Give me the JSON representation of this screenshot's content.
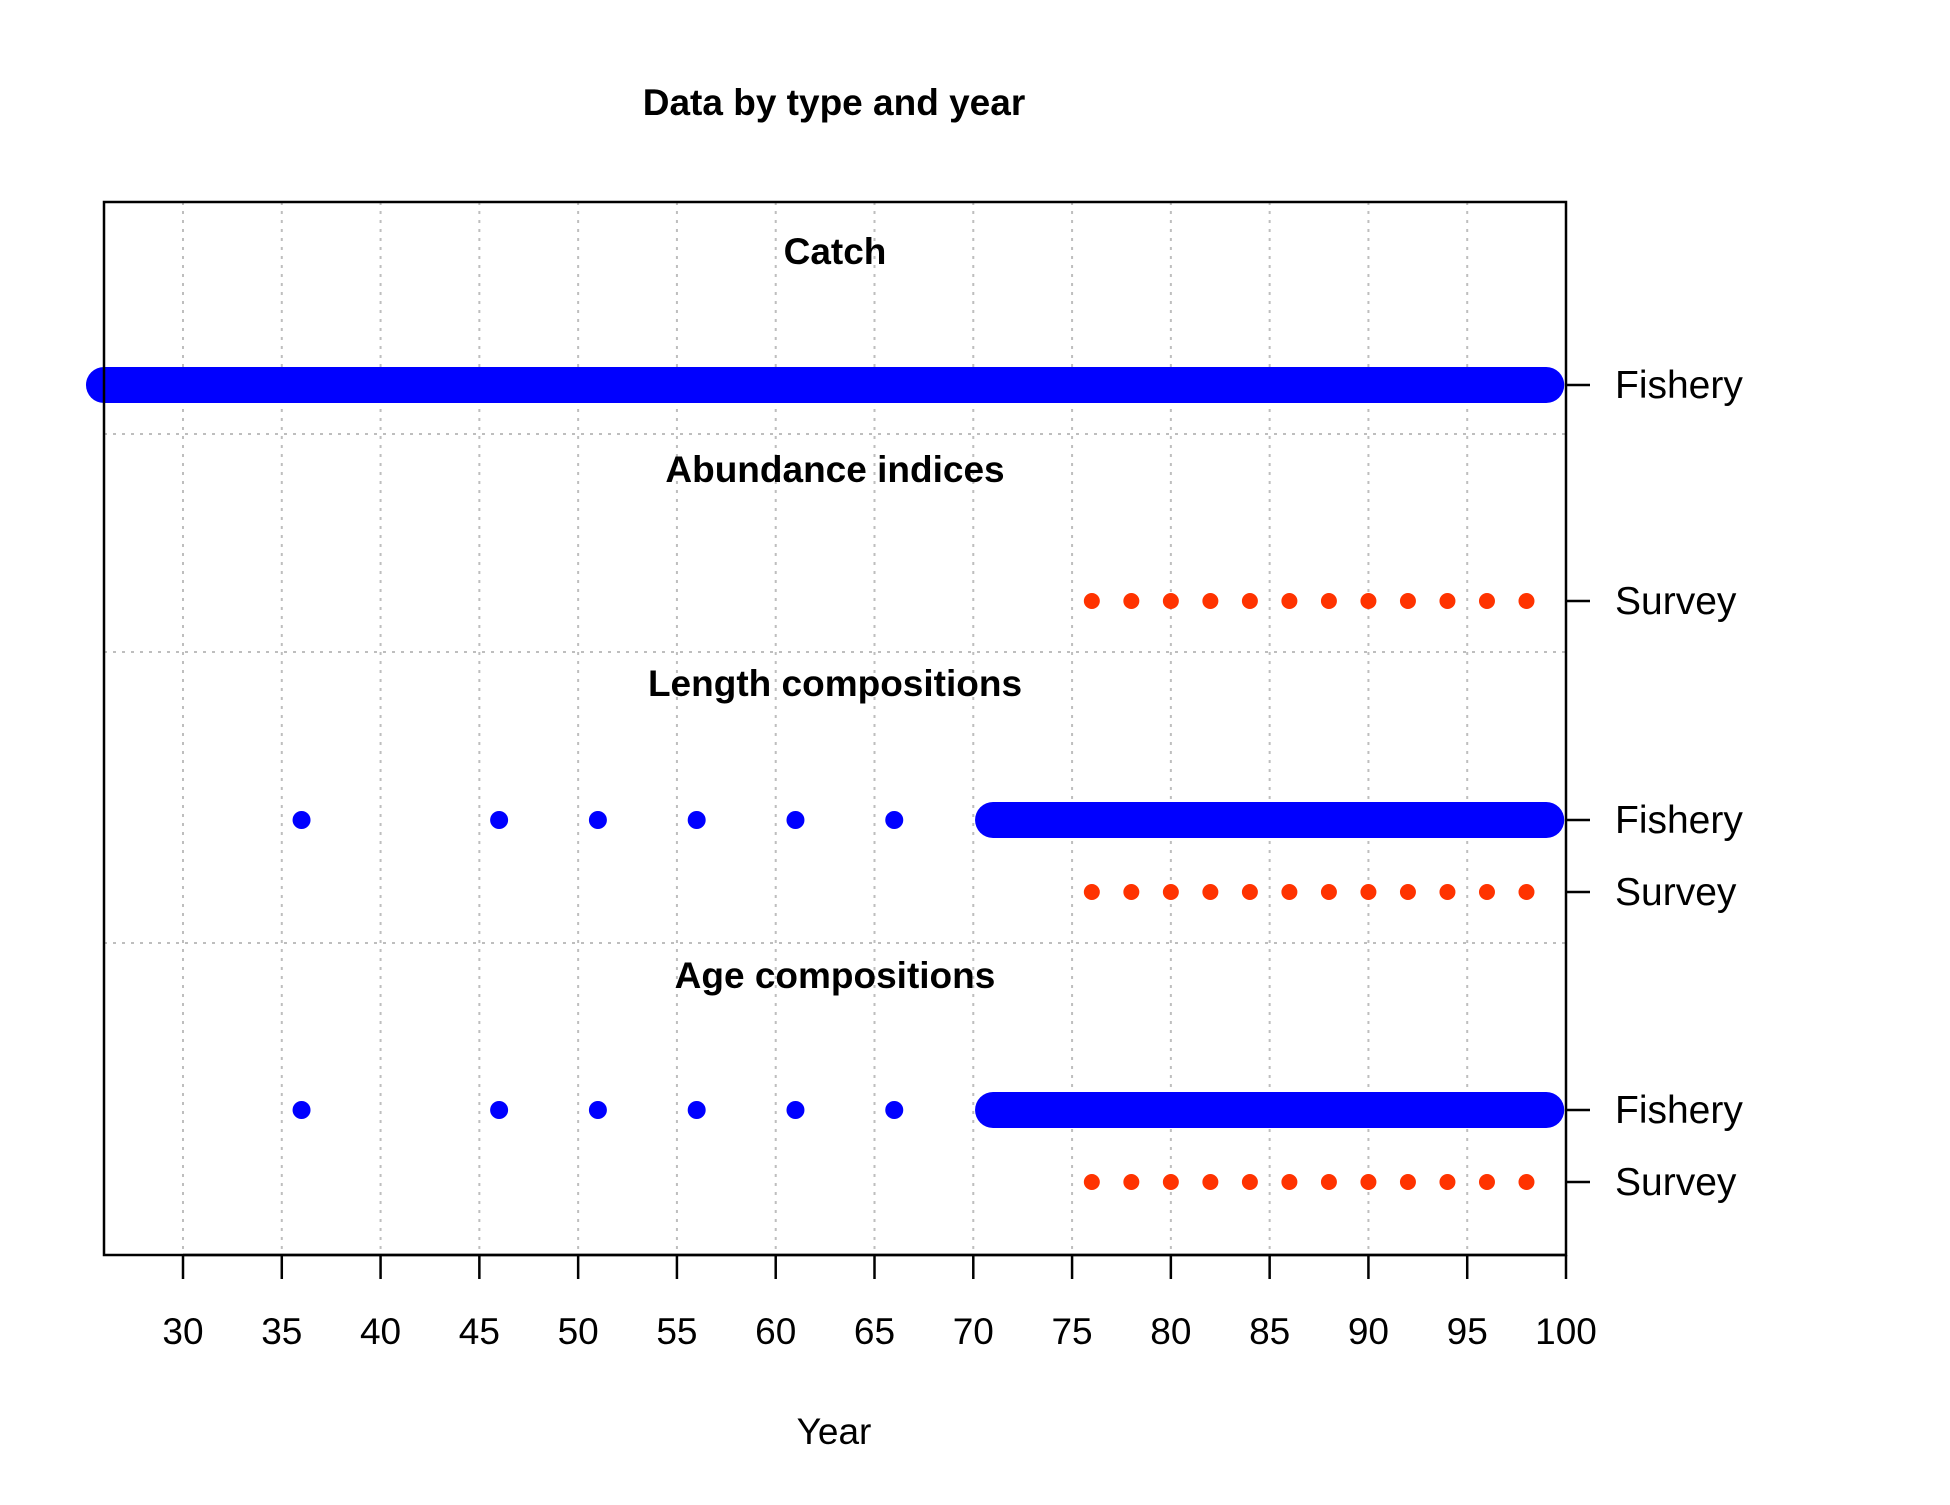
{
  "chart_data": {
    "type": "scatter",
    "title": "Data by type and year",
    "xlabel": "Year",
    "ylabel": "",
    "xlim": [
      26,
      100
    ],
    "x_ticks": [
      30,
      35,
      40,
      45,
      50,
      55,
      60,
      65,
      70,
      75,
      80,
      85,
      90,
      95,
      100
    ],
    "grid": true,
    "colors": {
      "fishery": "#0000ff",
      "survey": "#ff3300",
      "grid": "#bebebe",
      "axis": "#000000"
    },
    "panels": [
      {
        "title": "Catch",
        "rows": [
          {
            "label": "Fishery",
            "fleet": "fishery",
            "segments": [
              [
                26,
                99
              ]
            ],
            "points": []
          }
        ]
      },
      {
        "title": "Abundance indices",
        "rows": [
          {
            "label": "Survey",
            "fleet": "survey",
            "segments": [],
            "points": [
              76,
              78,
              80,
              82,
              84,
              86,
              88,
              90,
              92,
              94,
              96,
              98
            ]
          }
        ]
      },
      {
        "title": "Length compositions",
        "rows": [
          {
            "label": "Fishery",
            "fleet": "fishery",
            "segments": [
              [
                71,
                99
              ]
            ],
            "points": [
              36,
              46,
              51,
              56,
              61,
              66
            ]
          },
          {
            "label": "Survey",
            "fleet": "survey",
            "segments": [],
            "points": [
              76,
              78,
              80,
              82,
              84,
              86,
              88,
              90,
              92,
              94,
              96,
              98
            ]
          }
        ]
      },
      {
        "title": "Age compositions",
        "rows": [
          {
            "label": "Fishery",
            "fleet": "fishery",
            "segments": [
              [
                71,
                99
              ]
            ],
            "points": [
              36,
              46,
              51,
              56,
              61,
              66
            ]
          },
          {
            "label": "Survey",
            "fleet": "survey",
            "segments": [],
            "points": [
              76,
              78,
              80,
              82,
              84,
              86,
              88,
              90,
              92,
              94,
              96,
              98
            ]
          }
        ]
      }
    ]
  }
}
